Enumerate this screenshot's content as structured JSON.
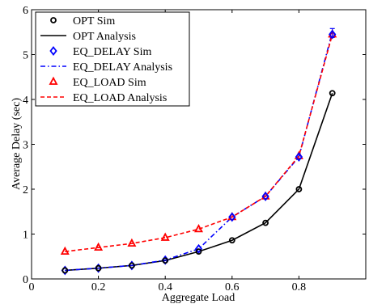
{
  "chart_data": {
    "type": "line",
    "title": "",
    "xlabel": "Aggregate Load",
    "ylabel": "Average Delay (sec)",
    "xlim": [
      0,
      1
    ],
    "ylim": [
      0,
      6
    ],
    "xticks": [
      0,
      0.2,
      0.4,
      0.6,
      0.8
    ],
    "yticks": [
      0,
      1,
      2,
      3,
      4,
      5,
      6
    ],
    "grid": false,
    "legend_position": "top-left",
    "x": [
      0.1,
      0.2,
      0.3,
      0.4,
      0.5,
      0.6,
      0.7,
      0.8,
      0.9
    ],
    "series": [
      {
        "name": "OPT Sim",
        "style": "markers",
        "marker": "circle",
        "color": "#000000",
        "values": [
          0.19,
          0.24,
          0.3,
          0.41,
          0.61,
          0.86,
          1.25,
          2.0,
          4.14
        ]
      },
      {
        "name": "OPT Analysis",
        "style": "solid",
        "color": "#000000",
        "values": [
          0.19,
          0.24,
          0.3,
          0.41,
          0.61,
          0.86,
          1.25,
          2.0,
          4.14
        ]
      },
      {
        "name": "EQ_DELAY Sim",
        "style": "markers",
        "marker": "diamond",
        "color": "#0000ff",
        "values": [
          0.19,
          0.24,
          0.3,
          0.42,
          0.67,
          1.38,
          1.84,
          2.72,
          5.45
        ]
      },
      {
        "name": "EQ_DELAY Analysis",
        "style": "dashdot",
        "color": "#0000ff",
        "values": [
          0.19,
          0.24,
          0.3,
          0.42,
          0.67,
          1.38,
          1.84,
          2.72,
          5.5
        ]
      },
      {
        "name": "EQ_LOAD Sim",
        "style": "markers",
        "marker": "triangle",
        "color": "#ff0000",
        "values": [
          0.61,
          0.7,
          0.79,
          0.92,
          1.11,
          1.38,
          1.84,
          2.74,
          5.45
        ]
      },
      {
        "name": "EQ_LOAD Analysis",
        "style": "dashed",
        "color": "#ff0000",
        "values": [
          0.61,
          0.7,
          0.79,
          0.92,
          1.11,
          1.38,
          1.84,
          2.74,
          5.45
        ]
      }
    ],
    "error_bar": {
      "x": 0.9,
      "low": 5.38,
      "high": 5.58,
      "color": "#0000ff"
    }
  }
}
